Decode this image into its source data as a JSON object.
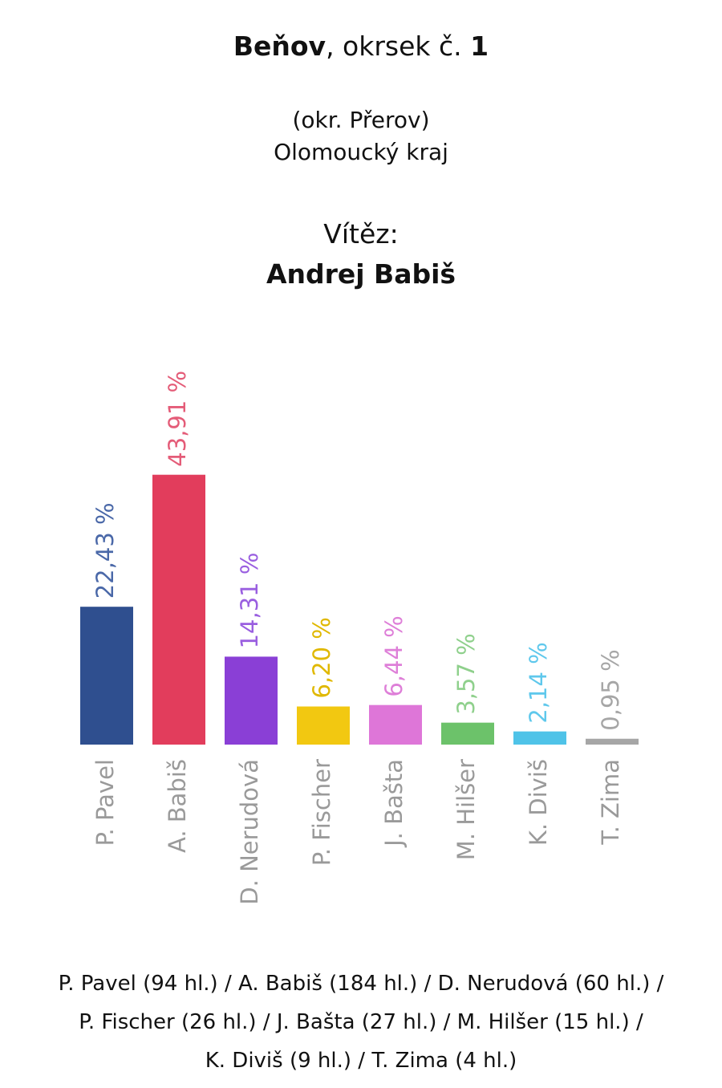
{
  "header": {
    "place": "Beňov",
    "district_text": ", okrsek č. ",
    "district_number": "1",
    "okres": "(okr. Přerov)",
    "kraj": "Olomoucký kraj",
    "winner_label": "Vítěz:",
    "winner_name": "Andrej Babiš"
  },
  "chart_data": {
    "type": "bar",
    "categories": [
      "P. Pavel",
      "A. Babiš",
      "D. Nerudová",
      "P. Fischer",
      "J. Bašta",
      "M. Hilšer",
      "K. Diviš",
      "T. Zima"
    ],
    "values": [
      22.43,
      43.91,
      14.31,
      6.2,
      6.44,
      3.57,
      2.14,
      0.95
    ],
    "labels": [
      "22,43 %",
      "43,91 %",
      "14,31 %",
      "6,20 %",
      "6,44 %",
      "3,57 %",
      "2,14 %",
      "0,95 %"
    ],
    "colors": [
      "#2f4f8f",
      "#e23d5c",
      "#8a3fd6",
      "#f2c811",
      "#de76d8",
      "#6cc26a",
      "#4fc3e8",
      "#a6a6a6"
    ],
    "label_colors": [
      "#4a68a8",
      "#e45c78",
      "#9a5fe0",
      "#e0b800",
      "#de7fd8",
      "#8fd08c",
      "#5fc8ec",
      "#a6a6a6"
    ],
    "ylim": [
      0,
      44
    ],
    "grid": false,
    "legend": "none"
  },
  "footer": {
    "line1": "P. Pavel (94 hl.)  / A. Babiš (184 hl.) / D. Nerudová (60 hl.) /",
    "line2": "P. Fischer (26 hl.) / J. Bašta (27 hl.) / M. Hilšer (15 hl.) /",
    "line3": "K. Diviš (9 hl.) / T. Zima (4 hl.)"
  }
}
